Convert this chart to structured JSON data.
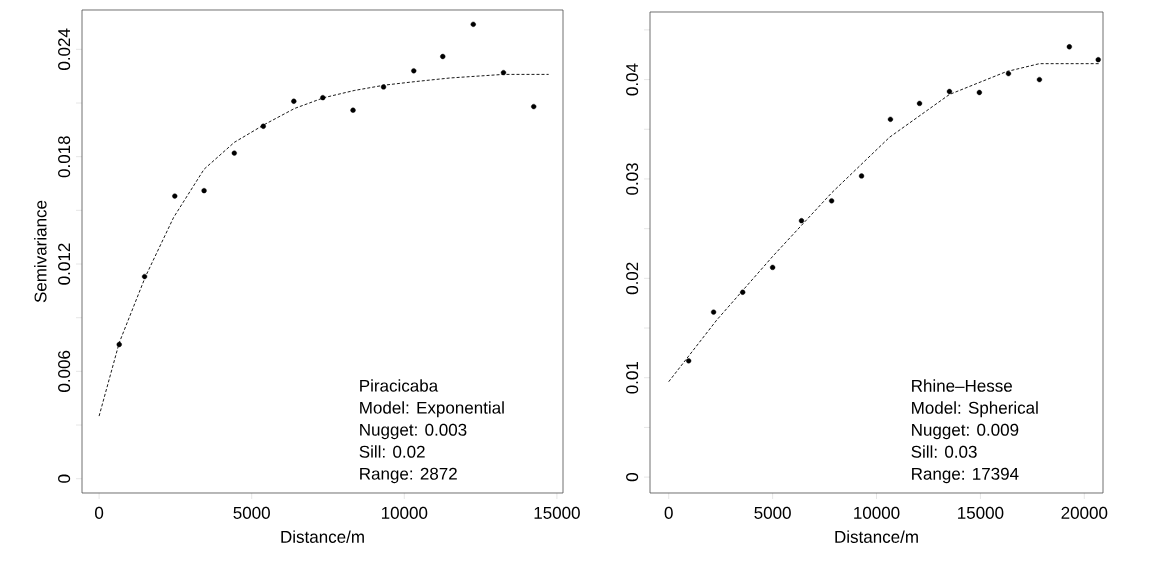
{
  "chart_data": [
    {
      "type": "scatter",
      "xlabel": "Distance/m",
      "ylabel": "Semivariance",
      "xlim": [
        -560,
        15200
      ],
      "ylim": [
        -0.0008,
        0.0262
      ],
      "xticks": [
        0,
        5000,
        10000,
        15000
      ],
      "yticks": [
        0,
        {
          "value": 0.003,
          "label": null
        },
        0.006,
        {
          "value": 0.009,
          "label": null
        },
        0.012,
        {
          "value": 0.015,
          "label": null
        },
        0.018,
        {
          "value": 0.021,
          "label": null
        },
        0.024
      ],
      "series": [
        {
          "color": "#000000",
          "marker": "circle",
          "x": [
            660,
            1490,
            2480,
            3440,
            4430,
            5380,
            6380,
            7330,
            8320,
            9320,
            10310,
            11260,
            12260,
            13250,
            14240
          ],
          "values": [
            0.0075,
            0.0113,
            0.0158,
            0.0161,
            0.0182,
            0.0197,
            0.0211,
            0.0213,
            0.0206,
            0.0219,
            0.0228,
            0.0236,
            0.0254,
            0.0227,
            0.0208
          ]
        },
        {
          "type": "line",
          "color": "#000000",
          "line_style": "dashed",
          "x": [
            0,
            660,
            1520,
            2440,
            3440,
            4430,
            5420,
            6410,
            7370,
            8360,
            9350,
            10370,
            11500,
            13250,
            14730
          ],
          "values": [
            0.0035,
            0.0076,
            0.0113,
            0.0146,
            0.0173,
            0.0188,
            0.0198,
            0.0207,
            0.0213,
            0.0217,
            0.022,
            0.0222,
            0.0224,
            0.0226,
            0.0226
          ]
        }
      ],
      "annotations": [
        "Piracicaba",
        "Model: Exponential",
        "Nugget: 0.003",
        "Sill: 0.02",
        "Range: 2872"
      ]
    },
    {
      "type": "scatter",
      "xlabel": "Distance/m",
      "xlim": [
        -900,
        20900
      ],
      "ylim": [
        -0.0016,
        0.0468
      ],
      "xticks": [
        0,
        5000,
        10000,
        15000,
        20000
      ],
      "yticks": [
        0,
        {
          "value": 0.005,
          "label": null
        },
        0.01,
        {
          "value": 0.015,
          "label": null
        },
        0.02,
        {
          "value": 0.025,
          "label": null
        },
        0.03,
        {
          "value": 0.035,
          "label": null
        },
        0.04,
        {
          "value": 0.045,
          "label": null
        }
      ],
      "series": [
        {
          "color": "#000000",
          "marker": "circle",
          "x": [
            960,
            2160,
            3560,
            5000,
            6390,
            7840,
            9280,
            10670,
            12070,
            13510,
            14950,
            16350,
            17840,
            19280,
            20670
          ],
          "values": [
            0.0117,
            0.0166,
            0.0186,
            0.0211,
            0.0258,
            0.0278,
            0.0303,
            0.036,
            0.0376,
            0.0388,
            0.0387,
            0.0406,
            0.04,
            0.0433,
            0.042
          ]
        },
        {
          "type": "line",
          "color": "#000000",
          "line_style": "dashed",
          "x": [
            0,
            2310,
            5000,
            7840,
            10630,
            13510,
            16250,
            17840,
            20700
          ],
          "values": [
            0.0096,
            0.0158,
            0.0222,
            0.0286,
            0.0342,
            0.0385,
            0.0408,
            0.0416,
            0.0416
          ]
        }
      ],
      "annotations": [
        "Rhine–Hesse",
        "Model: Spherical",
        "Nugget: 0.009",
        "Sill: 0.03",
        "Range: 17394"
      ]
    }
  ]
}
